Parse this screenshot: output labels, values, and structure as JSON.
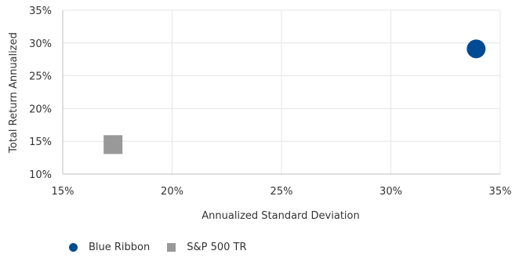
{
  "chart_data": {
    "type": "scatter",
    "title": "",
    "xlabel": "Annualized Standard Deviation",
    "ylabel": "Total Return Annualized",
    "xlim": [
      15,
      35
    ],
    "ylim": [
      10,
      35
    ],
    "x_ticks": [
      15,
      20,
      25,
      30,
      35
    ],
    "y_ticks": [
      10,
      15,
      20,
      25,
      30,
      35
    ],
    "x_tick_labels": [
      "15%",
      "20%",
      "25%",
      "30%",
      "35%"
    ],
    "y_tick_labels": [
      "10%",
      "15%",
      "20%",
      "25%",
      "30%",
      "35%"
    ],
    "grid": true,
    "legend_position": "bottom-left",
    "series": [
      {
        "name": "Blue Ribbon",
        "marker": "circle",
        "color": "#004b93",
        "points": [
          {
            "x": 33.9,
            "y": 29.1
          }
        ]
      },
      {
        "name": "S&P 500 TR",
        "marker": "square",
        "color": "#999999",
        "points": [
          {
            "x": 17.3,
            "y": 14.5
          }
        ]
      }
    ]
  }
}
